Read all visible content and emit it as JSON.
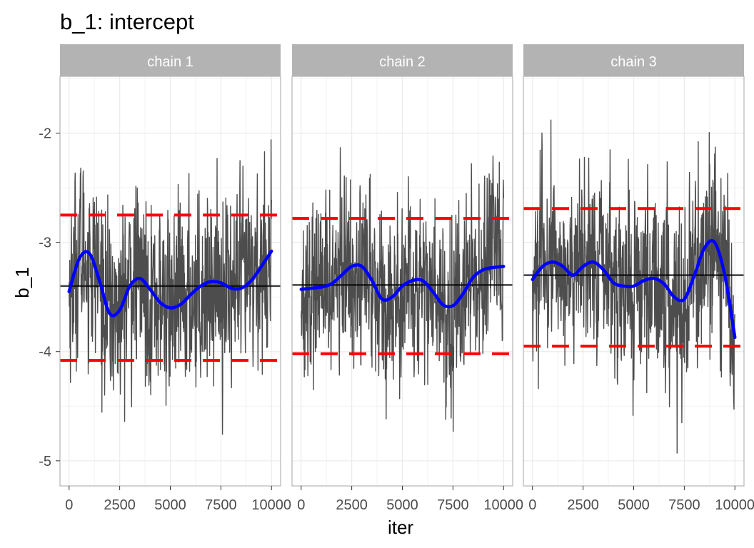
{
  "chart_data": {
    "type": "line",
    "title": "b_1: intercept",
    "xlabel": "iter",
    "ylabel": "b_1",
    "xlim": [
      -450,
      10450
    ],
    "ylim": [
      -5.23,
      -1.48
    ],
    "x_ticks": [
      0,
      2500,
      5000,
      7500,
      10000
    ],
    "x_tick_labels": [
      "0",
      "2500",
      "5000",
      "7500",
      "10000"
    ],
    "y_ticks": [
      -2,
      -3,
      -4,
      -5
    ],
    "y_tick_labels": [
      "-2",
      "-3",
      "-4",
      "-5"
    ],
    "grid": true,
    "colors": {
      "trace": "#4d4d4d",
      "smooth": "#0000ff",
      "reference_lines": "#ff0000",
      "mean_line": "#000000",
      "strip_background": "#b3b3b3",
      "panel_border": "#b3b3b3",
      "grid": "#ebebeb"
    },
    "panels": [
      {
        "label": "chain 1",
        "mean": -3.4,
        "interval": [
          -4.08,
          -2.75
        ],
        "smooth_x": [
          0,
          500,
          1000,
          1500,
          2000,
          2500,
          3000,
          3500,
          4000,
          4500,
          5000,
          5500,
          6000,
          6500,
          7000,
          7500,
          8000,
          8500,
          9000,
          9500,
          10000
        ],
        "smooth_y": [
          -3.45,
          -3.15,
          -3.1,
          -3.35,
          -3.65,
          -3.62,
          -3.4,
          -3.33,
          -3.43,
          -3.55,
          -3.6,
          -3.57,
          -3.48,
          -3.4,
          -3.36,
          -3.37,
          -3.42,
          -3.42,
          -3.35,
          -3.22,
          -3.08
        ],
        "trace_range": [
          -5.07,
          -1.72
        ]
      },
      {
        "label": "chain 2",
        "mean": -3.39,
        "interval": [
          -4.02,
          -2.78
        ],
        "smooth_x": [
          0,
          500,
          1000,
          1500,
          2000,
          2500,
          3000,
          3500,
          4000,
          4500,
          5000,
          5500,
          6000,
          6500,
          7000,
          7500,
          8000,
          8500,
          9000,
          9500,
          10000
        ],
        "smooth_y": [
          -3.43,
          -3.42,
          -3.41,
          -3.38,
          -3.3,
          -3.22,
          -3.22,
          -3.35,
          -3.52,
          -3.5,
          -3.4,
          -3.35,
          -3.35,
          -3.45,
          -3.57,
          -3.58,
          -3.47,
          -3.32,
          -3.25,
          -3.23,
          -3.22
        ],
        "trace_range": [
          -5.02,
          -1.87
        ]
      },
      {
        "label": "chain 3",
        "mean": -3.3,
        "interval": [
          -3.95,
          -2.69
        ],
        "smooth_x": [
          0,
          500,
          1000,
          1500,
          2000,
          2500,
          3000,
          3500,
          4000,
          4500,
          5000,
          5500,
          6000,
          6500,
          7000,
          7500,
          8000,
          8500,
          9000,
          9500,
          10000
        ],
        "smooth_y": [
          -3.34,
          -3.22,
          -3.18,
          -3.22,
          -3.3,
          -3.22,
          -3.18,
          -3.25,
          -3.37,
          -3.4,
          -3.4,
          -3.35,
          -3.33,
          -3.38,
          -3.5,
          -3.52,
          -3.3,
          -3.05,
          -3.0,
          -3.3,
          -3.87
        ],
        "trace_range": [
          -4.93,
          -1.88
        ]
      }
    ]
  }
}
